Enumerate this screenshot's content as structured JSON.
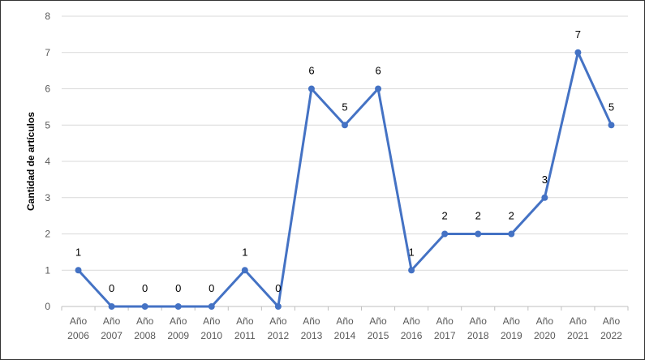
{
  "chart_data": {
    "type": "line",
    "title": "",
    "xlabel": "",
    "ylabel": "Cantidad de artículos",
    "ylim": [
      0,
      8
    ],
    "yticks": [
      0,
      1,
      2,
      3,
      4,
      5,
      6,
      7,
      8
    ],
    "grid": true,
    "legend": "none",
    "categories": [
      [
        "Año",
        "2006"
      ],
      [
        "Año",
        "2007"
      ],
      [
        "Año",
        "2008"
      ],
      [
        "Año",
        "2009"
      ],
      [
        "Año",
        "2010"
      ],
      [
        "Año",
        "2011"
      ],
      [
        "Año",
        "2012"
      ],
      [
        "Año",
        "2013"
      ],
      [
        "Año",
        "2014"
      ],
      [
        "Año",
        "2015"
      ],
      [
        "Año",
        "2016"
      ],
      [
        "Año",
        "2017"
      ],
      [
        "Año",
        "2018"
      ],
      [
        "Año",
        "2019"
      ],
      [
        "Año",
        "2020"
      ],
      [
        "Año",
        "2021"
      ],
      [
        "Año",
        "2022"
      ]
    ],
    "series": [
      {
        "values": [
          1,
          0,
          0,
          0,
          0,
          1,
          0,
          6,
          5,
          6,
          1,
          2,
          2,
          2,
          3,
          7,
          5
        ],
        "color": "#4472C4"
      }
    ],
    "colors": {
      "line": "#4472C4",
      "grid": "#d9d9d9",
      "axis": "#bfbfbf"
    }
  }
}
